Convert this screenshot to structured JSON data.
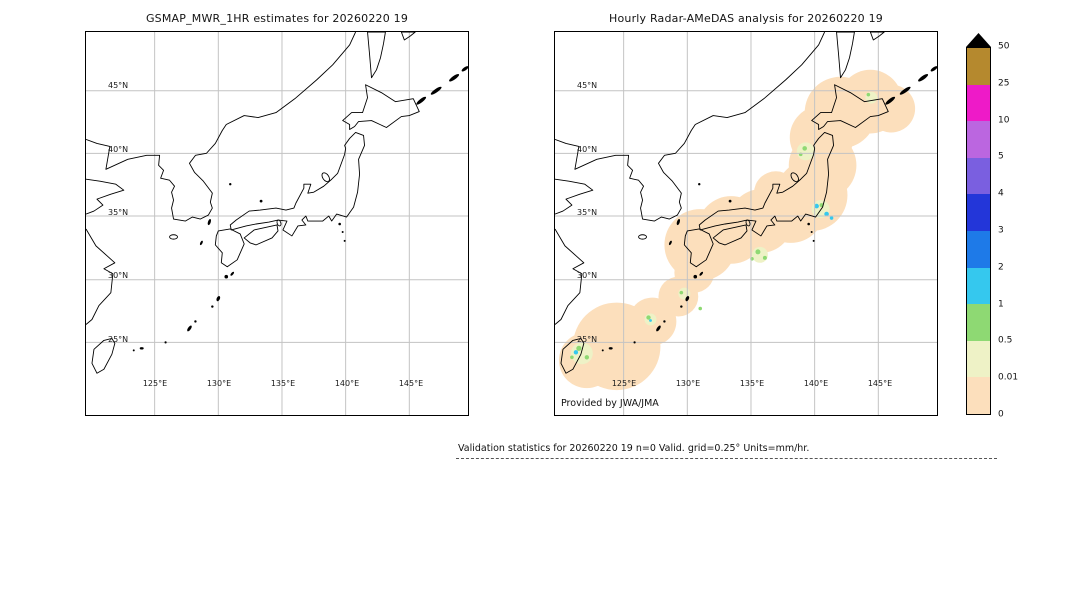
{
  "left_panel": {
    "title": "GSMAP_MWR_1HR estimates for 20260220 19"
  },
  "right_panel": {
    "title": "Hourly Radar-AMeDAS analysis for 20260220 19",
    "credit": "Provided by JWA/JMA"
  },
  "maps": {
    "lat_ticks": [
      {
        "label": "45°N",
        "value": 45
      },
      {
        "label": "40°N",
        "value": 40
      },
      {
        "label": "35°N",
        "value": 35
      },
      {
        "label": "30°N",
        "value": 30
      },
      {
        "label": "25°N",
        "value": 25
      }
    ],
    "lon_ticks": [
      {
        "label": "125°E",
        "value": 125
      },
      {
        "label": "130°E",
        "value": 130
      },
      {
        "label": "135°E",
        "value": 135
      },
      {
        "label": "140°E",
        "value": 140
      },
      {
        "label": "145°E",
        "value": 145
      }
    ]
  },
  "colorbar": {
    "labels": [
      "50",
      "25",
      "10",
      "5",
      "4",
      "3",
      "2",
      "1",
      "0.5",
      "0.01",
      "0"
    ],
    "colors": [
      "#b5892e",
      "#ee1ac8",
      "#bb66e0",
      "#7a5fe0",
      "#2336d9",
      "#1e7ae8",
      "#35c8ee",
      "#8ed973",
      "#eef2c6",
      "#fcdfbc"
    ],
    "overflow_color": "#000000"
  },
  "footer": {
    "caption": "Validation statistics for 20260220 19  n=0 Valid. grid=0.25° Units=mm/hr."
  },
  "chart_data": {
    "type": "heatmap",
    "title": "GSMaP MWR vs Radar-AMeDAS hourly precipitation validation maps",
    "panels": [
      {
        "title": "GSMAP_MWR_1HR estimates for 20260220 19",
        "content": "empty map of the Japan region, no satellite precipitation estimates plotted (n=0)"
      },
      {
        "title": "Hourly Radar-AMeDAS analysis for 20260220 19",
        "content": "radar coverage shaded at the 0-0.01 mm/hr level (peach) along the whole Japan archipelago from Okinawa/Taiwan up to Hokkaido; scattered weak echoes 0.01-2 mm/hr (pale green / green / cyan cells) near the Kanto-Tokai Pacific coast, south of Shikoku, around Amami-Okinawa and northeast of Taiwan",
        "credit": "Provided by JWA/JMA"
      }
    ],
    "x_tick_labels": [
      "125°E",
      "130°E",
      "135°E",
      "140°E",
      "145°E"
    ],
    "y_tick_labels": [
      "45°N",
      "40°N",
      "35°N",
      "30°N",
      "25°N"
    ],
    "map_extent": {
      "lon": [
        120,
        150
      ],
      "lat": [
        20,
        50
      ]
    },
    "colorbar_levels_mm_per_hr": [
      0,
      0.01,
      0.5,
      1,
      2,
      3,
      4,
      5,
      10,
      25,
      50
    ],
    "colorbar_overflow": "black triangle above 50",
    "caption": "Validation statistics for 20260220 19  n=0 Valid. grid=0.25° Units=mm/hr.",
    "grid": true,
    "legend_position": "right colorbar"
  }
}
